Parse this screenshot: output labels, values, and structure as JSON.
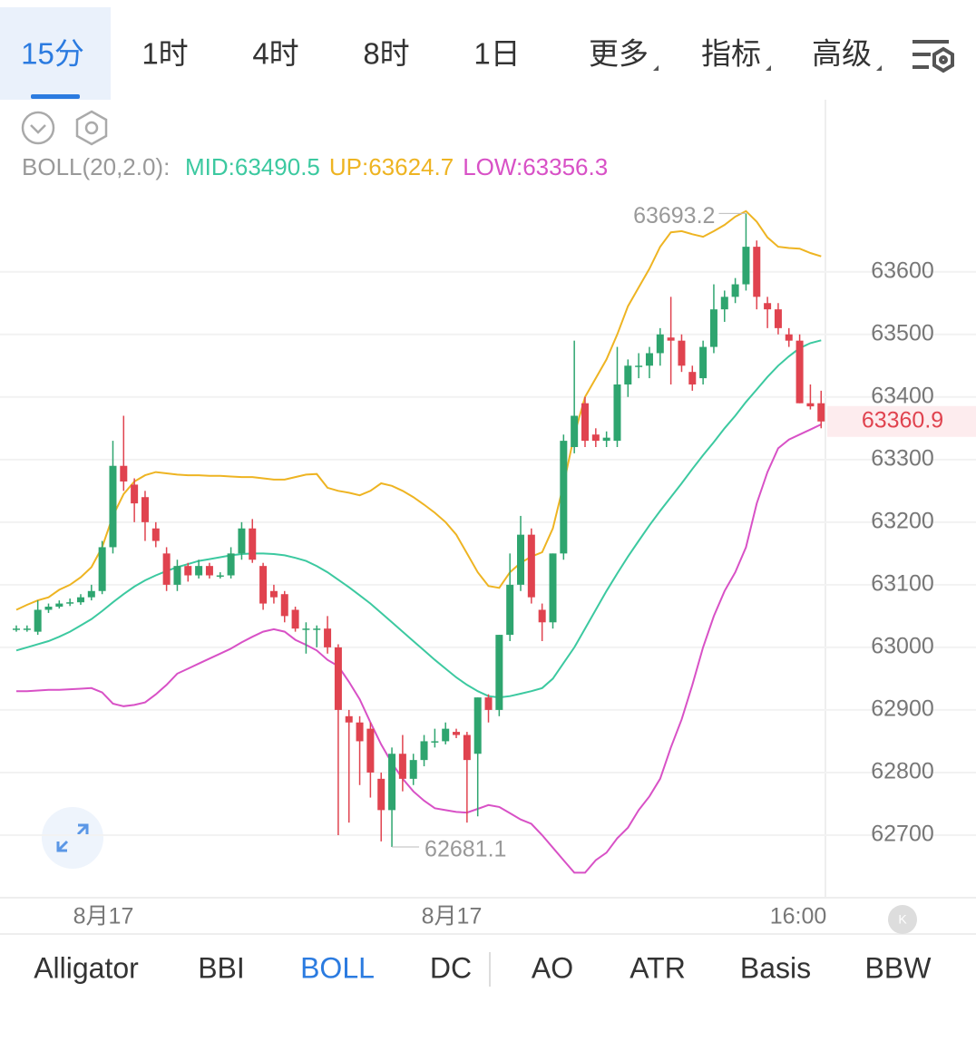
{
  "tabs": {
    "items": [
      "15分",
      "1时",
      "4时",
      "8时",
      "1日",
      "更多",
      "指标",
      "高级"
    ]
  },
  "indicator_header": {
    "name": "BOLL(20,2.0):"
  },
  "chart_data": {
    "type": "candlestick",
    "ylim": [
      62600,
      63730
    ],
    "yticks": [
      62700,
      62800,
      62900,
      63000,
      63100,
      63200,
      63300,
      63400,
      63500,
      63600
    ],
    "x_labels": [
      "8月17",
      "8月17",
      "16:00"
    ],
    "up_color": "#2ea56f",
    "down_color": "#e0434f",
    "grid": true,
    "open": [
      63030,
      63030,
      63025,
      63060,
      63065,
      63070,
      63072,
      63080,
      63090,
      63160,
      63290,
      63260,
      63240,
      63190,
      63150,
      63100,
      63130,
      63115,
      63130,
      63115,
      63115,
      63150,
      63190,
      63130,
      63090,
      63085,
      63060,
      63030,
      63030,
      63030,
      63000,
      62890,
      62880,
      62870,
      62790,
      62740,
      62830,
      62790,
      62820,
      62850,
      62850,
      62865,
      62860,
      62830,
      62920,
      62900,
      63020,
      63100,
      63180,
      63060,
      63040,
      63150,
      63320,
      63390,
      63340,
      63330,
      63330,
      63420,
      63450,
      63450,
      63470,
      63495,
      63490,
      63440,
      63430,
      63480,
      63540,
      63560,
      63580,
      63640,
      63550,
      63540,
      63500,
      63490,
      63390,
      63390
    ],
    "high": [
      63035,
      63035,
      63075,
      63070,
      63075,
      63078,
      63085,
      63100,
      63170,
      63330,
      63370,
      63270,
      63250,
      63200,
      63160,
      63140,
      63135,
      63140,
      63135,
      63120,
      63160,
      63200,
      63205,
      63135,
      63100,
      63090,
      63065,
      63040,
      63035,
      63050,
      63005,
      62900,
      62890,
      62880,
      62800,
      62840,
      62860,
      62830,
      62860,
      62870,
      62880,
      62870,
      62865,
      62920,
      62925,
      63020,
      63150,
      63210,
      63190,
      63070,
      63150,
      63340,
      63490,
      63400,
      63350,
      63345,
      63480,
      63460,
      63470,
      63480,
      63510,
      63560,
      63500,
      63450,
      63490,
      63580,
      63570,
      63590,
      63693.2,
      63650,
      63560,
      63550,
      63510,
      63500,
      63420,
      63410
    ],
    "low": [
      63025,
      63025,
      63020,
      63055,
      63062,
      63066,
      63068,
      63075,
      63085,
      63150,
      63250,
      63200,
      63170,
      63160,
      63090,
      63090,
      63105,
      63110,
      63110,
      63110,
      63110,
      63140,
      63135,
      63060,
      63070,
      63040,
      63025,
      62990,
      63000,
      62990,
      62700,
      62720,
      62780,
      62760,
      62690,
      62681.1,
      62770,
      62780,
      62810,
      62840,
      62845,
      62855,
      62720,
      62730,
      62880,
      62890,
      63010,
      63090,
      63070,
      63010,
      63030,
      63140,
      63310,
      63320,
      63320,
      63320,
      63320,
      63400,
      63430,
      63430,
      63450,
      63420,
      63440,
      63410,
      63420,
      63470,
      63520,
      63550,
      63570,
      63540,
      63510,
      63500,
      63480,
      63390,
      63380,
      63350
    ],
    "close": [
      63030,
      63030,
      63060,
      63065,
      63070,
      63072,
      63080,
      63090,
      63160,
      63290,
      63265,
      63230,
      63200,
      63170,
      63100,
      63130,
      63115,
      63130,
      63115,
      63115,
      63150,
      63190,
      63140,
      63070,
      63080,
      63050,
      63030,
      63030,
      63030,
      63000,
      62900,
      62880,
      62850,
      62800,
      62740,
      62830,
      62790,
      62820,
      62850,
      62850,
      62870,
      62860,
      62820,
      62920,
      62900,
      63020,
      63100,
      63180,
      63080,
      63040,
      63150,
      63330,
      63370,
      63330,
      63330,
      63335,
      63420,
      63450,
      63450,
      63470,
      63500,
      63490,
      63450,
      63420,
      63480,
      63540,
      63560,
      63580,
      63640,
      63560,
      63540,
      63510,
      63490,
      63390,
      63385,
      63360.9
    ],
    "series": [
      {
        "name": "MID:",
        "color": "#3cc9a0",
        "values": [
          62995,
          63000,
          63005,
          63010,
          63017,
          63025,
          63035,
          63045,
          63058,
          63072,
          63085,
          63097,
          63107,
          63115,
          63122,
          63128,
          63133,
          63138,
          63141,
          63144,
          63147,
          63149,
          63150,
          63150,
          63149,
          63147,
          63143,
          63138,
          63130,
          63120,
          63108,
          63096,
          63083,
          63070,
          63055,
          63040,
          63025,
          63010,
          62995,
          62980,
          62966,
          62952,
          62940,
          62930,
          62922,
          62920,
          62922,
          62926,
          62930,
          62935,
          62950,
          62975,
          63000,
          63030,
          63060,
          63090,
          63118,
          63145,
          63170,
          63195,
          63218,
          63240,
          63262,
          63285,
          63307,
          63328,
          63350,
          63370,
          63392,
          63412,
          63432,
          63450,
          63465,
          63478,
          63486,
          63490.5
        ]
      },
      {
        "name": "UP:",
        "color": "#eeb422",
        "values": [
          63060,
          63068,
          63075,
          63080,
          63092,
          63100,
          63112,
          63128,
          63160,
          63210,
          63245,
          63265,
          63275,
          63280,
          63278,
          63276,
          63275,
          63275,
          63274,
          63274,
          63273,
          63272,
          63272,
          63270,
          63268,
          63268,
          63272,
          63276,
          63277,
          63255,
          63250,
          63247,
          63243,
          63250,
          63262,
          63258,
          63250,
          63240,
          63228,
          63215,
          63200,
          63180,
          63150,
          63120,
          63098,
          63095,
          63120,
          63135,
          63145,
          63152,
          63190,
          63260,
          63340,
          63400,
          63430,
          63460,
          63500,
          63545,
          63575,
          63605,
          63640,
          63663,
          63665,
          63660,
          63656,
          63665,
          63675,
          63688,
          63697,
          63680,
          63655,
          63640,
          63638,
          63637,
          63630,
          63624.7
        ]
      },
      {
        "name": "LOW:",
        "color": "#d851c6",
        "values": [
          62930,
          62930,
          62931,
          62932,
          62932,
          62933,
          62934,
          62935,
          62928,
          62910,
          62906,
          62908,
          62912,
          62925,
          62940,
          62958,
          62966,
          62974,
          62982,
          62990,
          62998,
          63008,
          63017,
          63025,
          63029,
          63025,
          63012,
          63004,
          62995,
          62980,
          62970,
          62945,
          62917,
          62880,
          62845,
          62815,
          62790,
          62770,
          62755,
          62743,
          62740,
          62737,
          62736,
          62742,
          62748,
          62745,
          62735,
          62725,
          62718,
          62700,
          62680,
          62660,
          62640,
          62640,
          62660,
          62672,
          62695,
          62712,
          62740,
          62762,
          62790,
          62840,
          62885,
          62940,
          63000,
          63050,
          63090,
          63120,
          63160,
          63230,
          63280,
          63318,
          63332,
          63340,
          63348,
          63356.3
        ]
      }
    ]
  },
  "bottom_tabs": {
    "items": [
      "Alligator",
      "BBI",
      "BOLL",
      "DC",
      "AO",
      "ATR",
      "Basis",
      "BBW"
    ]
  }
}
